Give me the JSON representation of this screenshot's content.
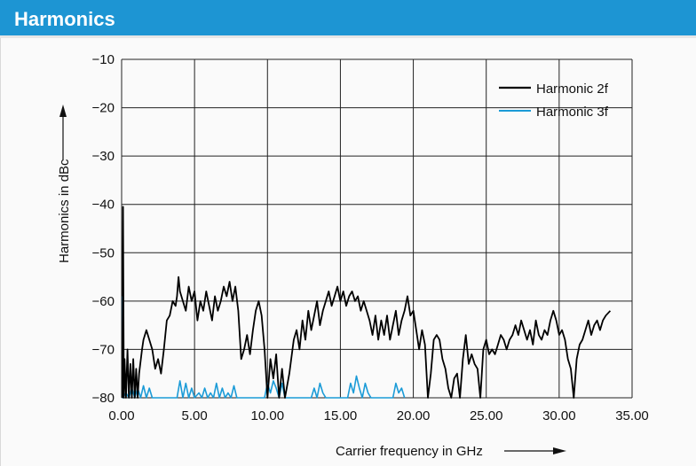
{
  "header": {
    "title": "Harmonics"
  },
  "chart_data": {
    "type": "line",
    "xlabel": "Carrier frequency in GHz",
    "ylabel": "Harmonics in dBc",
    "xlim": [
      0,
      35
    ],
    "ylim": [
      -80,
      -10
    ],
    "x_ticks": [
      "0.00",
      "5.00",
      "10.00",
      "15.00",
      "20.00",
      "25.00",
      "30.00",
      "35.00"
    ],
    "y_ticks": [
      "−10",
      "−20",
      "−30",
      "−40",
      "−50",
      "−60",
      "−70",
      "−80"
    ],
    "grid": true,
    "legend_position": "top-right",
    "series": [
      {
        "name": "Harmonic 2f",
        "color": "#000000",
        "points": [
          [
            0.05,
            -80
          ],
          [
            0.1,
            -40.5
          ],
          [
            0.15,
            -80
          ],
          [
            0.2,
            -72
          ],
          [
            0.3,
            -80
          ],
          [
            0.4,
            -70
          ],
          [
            0.5,
            -80
          ],
          [
            0.6,
            -73
          ],
          [
            0.7,
            -80
          ],
          [
            0.8,
            -72
          ],
          [
            0.9,
            -80
          ],
          [
            1.0,
            -74
          ],
          [
            1.1,
            -80
          ],
          [
            1.2,
            -75
          ],
          [
            1.4,
            -70
          ],
          [
            1.5,
            -68
          ],
          [
            1.7,
            -66
          ],
          [
            1.9,
            -68
          ],
          [
            2.1,
            -70
          ],
          [
            2.3,
            -74
          ],
          [
            2.5,
            -72
          ],
          [
            2.7,
            -75
          ],
          [
            2.9,
            -70
          ],
          [
            3.1,
            -64
          ],
          [
            3.3,
            -63
          ],
          [
            3.5,
            -60
          ],
          [
            3.7,
            -61
          ],
          [
            3.8,
            -59
          ],
          [
            3.9,
            -55
          ],
          [
            4.0,
            -58
          ],
          [
            4.2,
            -60
          ],
          [
            4.4,
            -62
          ],
          [
            4.6,
            -57
          ],
          [
            4.8,
            -60
          ],
          [
            5.0,
            -58
          ],
          [
            5.2,
            -64
          ],
          [
            5.4,
            -60
          ],
          [
            5.6,
            -62
          ],
          [
            5.8,
            -58
          ],
          [
            6.0,
            -61
          ],
          [
            6.2,
            -64
          ],
          [
            6.4,
            -59
          ],
          [
            6.6,
            -62
          ],
          [
            6.8,
            -60
          ],
          [
            7.0,
            -57
          ],
          [
            7.2,
            -59
          ],
          [
            7.4,
            -56
          ],
          [
            7.6,
            -60
          ],
          [
            7.8,
            -57
          ],
          [
            8.0,
            -62
          ],
          [
            8.2,
            -72
          ],
          [
            8.4,
            -70
          ],
          [
            8.6,
            -67
          ],
          [
            8.8,
            -71
          ],
          [
            9.0,
            -66
          ],
          [
            9.2,
            -62
          ],
          [
            9.4,
            -60
          ],
          [
            9.6,
            -63
          ],
          [
            9.8,
            -70
          ],
          [
            10.0,
            -80
          ],
          [
            10.2,
            -72
          ],
          [
            10.4,
            -76
          ],
          [
            10.6,
            -71
          ],
          [
            10.8,
            -80
          ],
          [
            11.0,
            -74
          ],
          [
            11.2,
            -80
          ],
          [
            11.5,
            -75
          ],
          [
            11.8,
            -68
          ],
          [
            12.0,
            -66
          ],
          [
            12.2,
            -70
          ],
          [
            12.4,
            -64
          ],
          [
            12.6,
            -68
          ],
          [
            12.8,
            -62
          ],
          [
            13.0,
            -66
          ],
          [
            13.2,
            -63
          ],
          [
            13.4,
            -60
          ],
          [
            13.6,
            -65
          ],
          [
            13.8,
            -62
          ],
          [
            14.0,
            -60
          ],
          [
            14.2,
            -58
          ],
          [
            14.4,
            -61
          ],
          [
            14.6,
            -59
          ],
          [
            14.8,
            -57
          ],
          [
            15.0,
            -60
          ],
          [
            15.2,
            -58
          ],
          [
            15.4,
            -61
          ],
          [
            15.6,
            -59
          ],
          [
            15.8,
            -58
          ],
          [
            16.0,
            -60
          ],
          [
            16.2,
            -59
          ],
          [
            16.4,
            -62
          ],
          [
            16.6,
            -60
          ],
          [
            16.8,
            -62
          ],
          [
            17.0,
            -64
          ],
          [
            17.2,
            -67
          ],
          [
            17.4,
            -63
          ],
          [
            17.6,
            -68
          ],
          [
            17.8,
            -64
          ],
          [
            18.0,
            -67
          ],
          [
            18.2,
            -63
          ],
          [
            18.4,
            -68
          ],
          [
            18.6,
            -65
          ],
          [
            18.8,
            -62
          ],
          [
            19.0,
            -67
          ],
          [
            19.2,
            -64
          ],
          [
            19.4,
            -62
          ],
          [
            19.6,
            -59
          ],
          [
            19.8,
            -63
          ],
          [
            20.0,
            -62
          ],
          [
            20.2,
            -66
          ],
          [
            20.4,
            -70
          ],
          [
            20.6,
            -66
          ],
          [
            20.8,
            -69
          ],
          [
            21.0,
            -80
          ],
          [
            21.2,
            -75
          ],
          [
            21.4,
            -68
          ],
          [
            21.6,
            -67
          ],
          [
            21.8,
            -68
          ],
          [
            22.0,
            -72
          ],
          [
            22.2,
            -74
          ],
          [
            22.4,
            -78
          ],
          [
            22.6,
            -80
          ],
          [
            22.8,
            -76
          ],
          [
            23.0,
            -75
          ],
          [
            23.2,
            -80
          ],
          [
            23.4,
            -72
          ],
          [
            23.6,
            -67
          ],
          [
            23.8,
            -73
          ],
          [
            24.0,
            -71
          ],
          [
            24.2,
            -73
          ],
          [
            24.4,
            -74
          ],
          [
            24.6,
            -80
          ],
          [
            24.8,
            -70
          ],
          [
            25.0,
            -68
          ],
          [
            25.2,
            -71
          ],
          [
            25.4,
            -70
          ],
          [
            25.6,
            -71
          ],
          [
            25.8,
            -69
          ],
          [
            26.0,
            -67
          ],
          [
            26.2,
            -68
          ],
          [
            26.4,
            -70
          ],
          [
            26.6,
            -68
          ],
          [
            26.8,
            -67
          ],
          [
            27.0,
            -65
          ],
          [
            27.2,
            -67
          ],
          [
            27.4,
            -64
          ],
          [
            27.6,
            -66
          ],
          [
            27.8,
            -68
          ],
          [
            28.0,
            -66
          ],
          [
            28.2,
            -69
          ],
          [
            28.4,
            -64
          ],
          [
            28.6,
            -67
          ],
          [
            28.8,
            -68
          ],
          [
            29.0,
            -66
          ],
          [
            29.2,
            -67
          ],
          [
            29.4,
            -64
          ],
          [
            29.6,
            -62
          ],
          [
            29.8,
            -64
          ],
          [
            30.0,
            -67
          ],
          [
            30.2,
            -66
          ],
          [
            30.4,
            -68
          ],
          [
            30.6,
            -72
          ],
          [
            30.8,
            -74
          ],
          [
            31.0,
            -80
          ],
          [
            31.2,
            -72
          ],
          [
            31.4,
            -69
          ],
          [
            31.6,
            -68
          ],
          [
            31.8,
            -66
          ],
          [
            32.0,
            -64
          ],
          [
            32.2,
            -67
          ],
          [
            32.4,
            -65
          ],
          [
            32.6,
            -64
          ],
          [
            32.8,
            -66
          ],
          [
            33.0,
            -64
          ],
          [
            33.2,
            -63
          ],
          [
            33.5,
            -62
          ]
        ]
      },
      {
        "name": "Harmonic 3f",
        "color": "#1b9bd7",
        "points": [
          [
            0.05,
            -59
          ],
          [
            0.1,
            -80
          ],
          [
            0.3,
            -79
          ],
          [
            0.5,
            -80
          ],
          [
            0.7,
            -78
          ],
          [
            0.9,
            -80
          ],
          [
            1.1,
            -78
          ],
          [
            1.3,
            -80
          ],
          [
            1.5,
            -77.5
          ],
          [
            1.7,
            -80
          ],
          [
            1.9,
            -78
          ],
          [
            2.1,
            -80
          ],
          [
            3.8,
            -80
          ],
          [
            4.0,
            -76.5
          ],
          [
            4.2,
            -80
          ],
          [
            4.4,
            -77
          ],
          [
            4.6,
            -80
          ],
          [
            4.8,
            -78
          ],
          [
            5.0,
            -80
          ],
          [
            5.3,
            -79
          ],
          [
            5.5,
            -80
          ],
          [
            5.7,
            -78
          ],
          [
            5.9,
            -80
          ],
          [
            6.1,
            -79
          ],
          [
            6.3,
            -80
          ],
          [
            6.5,
            -77
          ],
          [
            6.7,
            -80
          ],
          [
            6.9,
            -78
          ],
          [
            7.1,
            -80
          ],
          [
            7.3,
            -79
          ],
          [
            7.5,
            -80
          ],
          [
            7.7,
            -77.5
          ],
          [
            7.9,
            -80
          ],
          [
            9.8,
            -80
          ],
          [
            10.0,
            -77
          ],
          [
            10.2,
            -79
          ],
          [
            10.4,
            -76.5
          ],
          [
            10.6,
            -78
          ],
          [
            10.8,
            -80
          ],
          [
            11.0,
            -77
          ],
          [
            11.2,
            -80
          ],
          [
            13.0,
            -80
          ],
          [
            13.2,
            -78
          ],
          [
            13.4,
            -80
          ],
          [
            13.6,
            -77
          ],
          [
            13.8,
            -79
          ],
          [
            14.0,
            -80
          ],
          [
            15.5,
            -80
          ],
          [
            15.7,
            -77
          ],
          [
            15.9,
            -79
          ],
          [
            16.1,
            -75.5
          ],
          [
            16.3,
            -78
          ],
          [
            16.5,
            -80
          ],
          [
            16.7,
            -77
          ],
          [
            16.9,
            -79
          ],
          [
            17.1,
            -80
          ],
          [
            18.6,
            -80
          ],
          [
            18.8,
            -77
          ],
          [
            19.0,
            -79
          ],
          [
            19.2,
            -78
          ],
          [
            19.4,
            -80
          ]
        ]
      }
    ]
  }
}
